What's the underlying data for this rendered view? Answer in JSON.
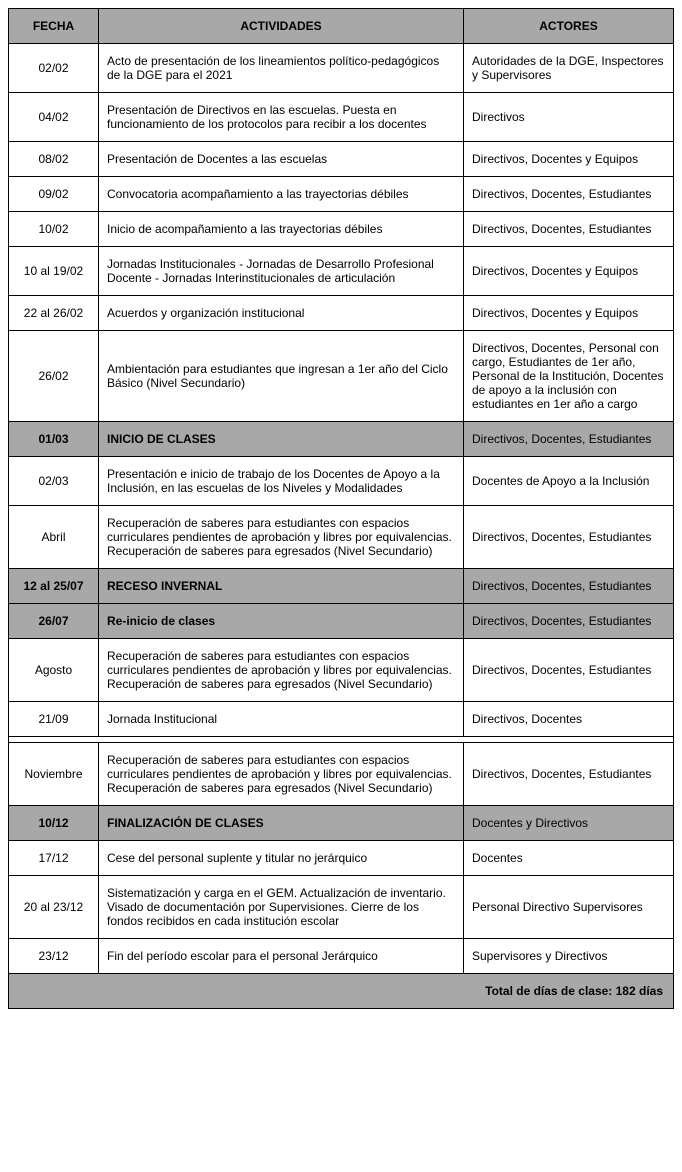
{
  "headers": {
    "fecha": "FECHA",
    "actividades": "ACTIVIDADES",
    "actores": "ACTORES"
  },
  "rows": [
    {
      "fecha": "02/02",
      "actividades": "Acto de presentación de los lineamientos político-pedagógicos de la DGE para el 2021",
      "actores": "Autoridades de la DGE, Inspectores y Supervisores",
      "highlighted": false
    },
    {
      "fecha": "04/02",
      "actividades": "Presentación de Directivos en las escuelas. Puesta en funcionamiento de los protocolos para recibir a los docentes",
      "actores": "Directivos",
      "highlighted": false
    },
    {
      "fecha": "08/02",
      "actividades": "Presentación de Docentes a las escuelas",
      "actores": "Directivos, Docentes y Equipos",
      "highlighted": false
    },
    {
      "fecha": "09/02",
      "actividades": "Convocatoria acompañamiento a las trayectorias débiles",
      "actores": "Directivos, Docentes, Estudiantes",
      "highlighted": false
    },
    {
      "fecha": "10/02",
      "actividades": "Inicio de acompañamiento a las trayectorias débiles",
      "actores": "Directivos, Docentes, Estudiantes",
      "highlighted": false
    },
    {
      "fecha": "10 al 19/02",
      "actividades": "Jornadas Institucionales - Jornadas de Desarrollo Profesional Docente - Jornadas Interinstitucionales de articulación",
      "actores": "Directivos, Docentes y Equipos",
      "highlighted": false
    },
    {
      "fecha": "22 al 26/02",
      "actividades": "Acuerdos y organización institucional",
      "actores": "Directivos, Docentes y Equipos",
      "highlighted": false
    },
    {
      "fecha": "26/02",
      "actividades": "Ambientación para estudiantes que ingresan a 1er año del Ciclo Básico (Nivel Secundario)",
      "actores": "Directivos, Docentes, Personal con cargo, Estudiantes de 1er año, Personal de la Institución, Docentes de apoyo a la inclusión con estudiantes en 1er año a cargo",
      "highlighted": false
    },
    {
      "fecha": "01/03",
      "actividades": "INICIO DE CLASES",
      "actores": "Directivos, Docentes, Estudiantes",
      "highlighted": true
    },
    {
      "fecha": "02/03",
      "actividades": "Presentación e inicio de trabajo de los Docentes de Apoyo a la Inclusión, en las escuelas de los Niveles y Modalidades",
      "actores": "Docentes de Apoyo a la Inclusión",
      "highlighted": false
    },
    {
      "fecha": "Abril",
      "actividades": "Recuperación de saberes para estudiantes con espacios curriculares pendientes de aprobación y libres por equivalencias. Recuperación de saberes para egresados (Nivel Secundario)",
      "actores": "Directivos, Docentes, Estudiantes",
      "highlighted": false,
      "justify": true
    },
    {
      "fecha": "12 al 25/07",
      "actividades": "RECESO INVERNAL",
      "actores": "Directivos, Docentes, Estudiantes",
      "highlighted": true
    },
    {
      "fecha": "26/07",
      "actividades": "Re-inicio de clases",
      "actores": "Directivos, Docentes, Estudiantes",
      "highlighted": true
    },
    {
      "fecha": "Agosto",
      "actividades": "Recuperación de saberes para estudiantes con espacios curriculares pendientes de aprobación y libres por equivalencias. Recuperación de saberes para egresados (Nivel Secundario)",
      "actores": "Directivos, Docentes, Estudiantes",
      "highlighted": false,
      "justify": true
    },
    {
      "fecha": "21/09",
      "actividades": "Jornada Institucional",
      "actores": "Directivos, Docentes",
      "highlighted": false
    },
    {
      "gap": true
    },
    {
      "fecha": "Noviembre",
      "actividades": "Recuperación de saberes para estudiantes con espacios curriculares pendientes de aprobación y libres por equivalencias. Recuperación de saberes para egresados (Nivel Secundario)",
      "actores": "Directivos, Docentes, Estudiantes",
      "highlighted": false,
      "justify": true
    },
    {
      "fecha": "10/12",
      "actividades": "FINALIZACIÓN DE CLASES",
      "actores": "Docentes y Directivos",
      "highlighted": true
    },
    {
      "fecha": "17/12",
      "actividades": "Cese del personal suplente y titular no jerárquico",
      "actores": "Docentes",
      "highlighted": false
    },
    {
      "fecha": "20 al 23/12",
      "actividades": "Sistematización y carga en el GEM. Actualización de inventario. Visado de documentación por Supervisiones. Cierre de los fondos recibidos en cada institución escolar",
      "actores": "Personal Directivo Supervisores",
      "highlighted": false
    },
    {
      "fecha": "23/12",
      "actividades": "Fin del período escolar para el personal Jerárquico",
      "actores": "Supervisores y Directivos",
      "highlighted": false
    }
  ],
  "footer": "Total de días de clase: 182 días"
}
